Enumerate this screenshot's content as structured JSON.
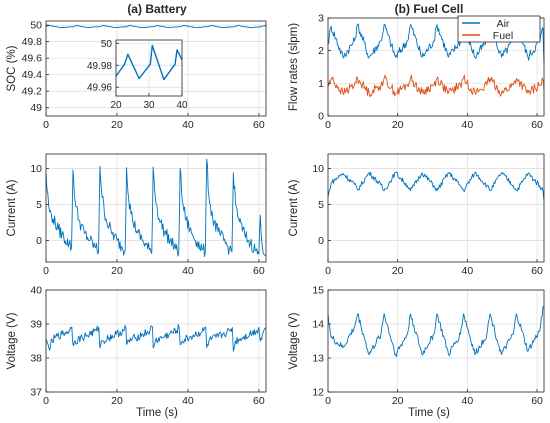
{
  "titles": {
    "battery": "(a) Battery",
    "fuel_cell": "(b) Fuel Cell"
  },
  "xlabel": "Time (s)",
  "legend": {
    "air": "Air",
    "fuel": "Fuel"
  },
  "colors": {
    "air": "#0072BD",
    "fuel": "#D95319",
    "grid": "#dcdcdc",
    "axes": "#262626"
  },
  "chart_data": [
    {
      "id": "battery-soc",
      "type": "line",
      "ylabel": "SOC (%)",
      "xlim": [
        0,
        62
      ],
      "ylim": [
        48.9,
        50.05
      ],
      "xticks": [
        0,
        20,
        40,
        60
      ],
      "yticks": [
        49,
        49.2,
        49.4,
        49.6,
        49.8,
        50
      ],
      "ytick_labels": [
        "49",
        "49.2",
        "49.4",
        "49.6",
        "49.8",
        "50"
      ],
      "grid": true,
      "series": [
        {
          "color": "#0072BD",
          "x": [
            0,
            0.9,
            4.3,
            7.6,
            8.5,
            11.8,
            15.2,
            16.1,
            19.4,
            22.8,
            23.7,
            27.0,
            30.4,
            31.3,
            34.6,
            38.0,
            38.9,
            42.2,
            45.6,
            46.5,
            49.8,
            53.2,
            54.1,
            57.4,
            60.8,
            61.7,
            62
          ],
          "y": [
            49.985,
            49.996,
            49.97,
            49.982,
            49.996,
            49.97,
            49.982,
            49.996,
            49.97,
            49.982,
            49.996,
            49.97,
            49.982,
            49.996,
            49.97,
            49.982,
            49.996,
            49.97,
            49.982,
            49.996,
            49.97,
            49.982,
            49.996,
            49.97,
            49.982,
            49.996,
            49.99
          ]
        }
      ],
      "inset": {
        "xlim": [
          20,
          40
        ],
        "ylim": [
          49.952,
          50.003
        ],
        "xticks": [
          20,
          30,
          40
        ],
        "yticks": [
          49.96,
          49.98,
          50
        ],
        "ytick_labels": [
          "49.96",
          "49.98",
          "50"
        ],
        "series": [
          {
            "color": "#0072BD",
            "x": [
              20,
              22.6,
              23.6,
              27.0,
              30.4,
              31.0,
              34.5,
              37.9,
              38.5,
              40
            ],
            "y": [
              49.97,
              49.981,
              49.99,
              49.968,
              49.981,
              49.998,
              49.967,
              49.981,
              49.994,
              49.985
            ]
          }
        ]
      }
    },
    {
      "id": "fuel-cell-flow",
      "type": "line",
      "ylabel": "Flow rates (slpm)",
      "xlim": [
        0,
        62
      ],
      "ylim": [
        0,
        3
      ],
      "xticks": [
        0,
        20,
        40,
        60
      ],
      "yticks": [
        0,
        1,
        2,
        3
      ],
      "ytick_labels": [
        "0",
        "1",
        "2",
        "3"
      ],
      "grid": true,
      "series": [
        {
          "name": "Air",
          "color": "#0072BD",
          "x": [
            0,
            0.9,
            4.3,
            7.6,
            8.5,
            11.8,
            15.2,
            16.1,
            19.4,
            22.8,
            23.7,
            27.0,
            30.4,
            31.3,
            34.6,
            38.0,
            38.9,
            42.2,
            45.6,
            46.5,
            49.8,
            53.2,
            54.1,
            57.4,
            60.8,
            61.7,
            62
          ],
          "y": [
            2.2,
            2.75,
            1.8,
            2.3,
            2.8,
            1.8,
            2.3,
            2.8,
            1.8,
            2.3,
            2.8,
            1.8,
            2.3,
            2.8,
            1.8,
            2.3,
            2.8,
            1.8,
            2.3,
            2.8,
            1.8,
            2.3,
            2.8,
            1.8,
            2.3,
            2.7,
            1.6
          ]
        },
        {
          "name": "Fuel",
          "color": "#D95319",
          "x": [
            0,
            0.9,
            4.3,
            7.6,
            8.5,
            11.8,
            15.2,
            16.1,
            19.4,
            22.8,
            23.7,
            27.0,
            30.4,
            31.3,
            34.6,
            38.0,
            38.9,
            42.2,
            45.6,
            46.5,
            49.8,
            53.2,
            54.1,
            57.4,
            60.8,
            61.7,
            62
          ],
          "y": [
            0.9,
            1.15,
            0.7,
            0.95,
            1.15,
            0.7,
            0.95,
            1.15,
            0.7,
            0.95,
            1.15,
            0.7,
            0.95,
            1.15,
            0.7,
            0.95,
            1.15,
            0.7,
            0.95,
            1.15,
            0.7,
            0.95,
            1.15,
            0.7,
            0.95,
            1.1,
            0.75
          ]
        }
      ]
    },
    {
      "id": "battery-current",
      "type": "line",
      "ylabel": "Current (A)",
      "xlim": [
        0,
        62
      ],
      "ylim": [
        -3,
        12
      ],
      "xticks": [
        0,
        20,
        40,
        60
      ],
      "yticks": [
        0,
        5,
        10
      ],
      "ytick_labels": [
        "0",
        "5",
        "10"
      ],
      "grid": true,
      "series": [
        {
          "color": "#0072BD",
          "x": [
            0,
            0.3,
            1.0,
            2.0,
            3.5,
            5.0,
            6.5,
            7.2,
            7.6,
            8.2,
            9.3,
            10.8,
            12.4,
            14.0,
            14.8,
            15.2,
            15.8,
            16.9,
            18.4,
            20.0,
            21.5,
            22.3,
            22.7,
            23.3,
            24.4,
            25.9,
            27.5,
            29.1,
            29.8,
            30.2,
            30.8,
            31.9,
            33.4,
            35.0,
            36.6,
            37.4,
            37.8,
            38.4,
            39.5,
            41.0,
            42.6,
            44.2,
            44.9,
            45.3,
            45.9,
            47.0,
            48.5,
            50.1,
            51.7,
            52.4,
            52.8,
            53.4,
            54.5,
            56.0,
            57.6,
            59.2,
            60.0,
            60.4,
            61.0,
            62
          ],
          "y": [
            9.5,
            7.0,
            4.0,
            3.0,
            1.5,
            0.5,
            -0.5,
            -1.0,
            9.8,
            5.5,
            2.8,
            1.0,
            0.0,
            -1.0,
            -1.5,
            10.3,
            6.0,
            3.0,
            1.2,
            0.0,
            -1.0,
            -1.5,
            10.1,
            5.8,
            2.8,
            1.0,
            -0.2,
            -1.3,
            -1.8,
            10.2,
            6.0,
            3.0,
            1.2,
            0.0,
            -1.2,
            -1.7,
            10.0,
            5.5,
            2.8,
            1.0,
            -0.2,
            -1.3,
            -1.6,
            11.3,
            6.2,
            3.0,
            1.2,
            0.0,
            -1.2,
            -1.6,
            9.4,
            5.2,
            2.6,
            0.8,
            -0.4,
            -1.4,
            -1.9,
            3.5,
            -1.0,
            -2.0
          ]
        }
      ]
    },
    {
      "id": "fuel-cell-current",
      "type": "line",
      "ylabel": "Current (A)",
      "xlim": [
        0,
        62
      ],
      "ylim": [
        -3,
        12
      ],
      "xticks": [
        0,
        20,
        40,
        60
      ],
      "yticks": [
        0,
        5,
        10
      ],
      "ytick_labels": [
        "0",
        "5",
        "10"
      ],
      "grid": true,
      "series": [
        {
          "color": "#0072BD",
          "x": [
            0,
            0.9,
            4.3,
            7.6,
            8.5,
            11.8,
            15.2,
            16.1,
            19.4,
            22.8,
            23.7,
            27.0,
            30.4,
            31.3,
            34.6,
            38.0,
            38.9,
            42.2,
            45.6,
            46.5,
            49.8,
            53.2,
            54.1,
            57.4,
            60.8,
            61.7,
            62
          ],
          "y": [
            6.0,
            8.0,
            9.3,
            7.8,
            7.0,
            9.4,
            7.7,
            6.9,
            9.4,
            7.6,
            6.9,
            9.4,
            7.6,
            6.9,
            9.4,
            7.6,
            6.9,
            9.4,
            7.6,
            6.9,
            9.4,
            7.6,
            6.9,
            9.3,
            7.6,
            6.9,
            5.5
          ]
        }
      ]
    },
    {
      "id": "battery-voltage",
      "type": "line",
      "ylabel": "Voltage (V)",
      "xlim": [
        0,
        62
      ],
      "ylim": [
        37,
        40
      ],
      "xticks": [
        0,
        20,
        40,
        60
      ],
      "yticks": [
        37,
        38,
        39,
        40
      ],
      "ytick_labels": [
        "37",
        "38",
        "39",
        "40"
      ],
      "grid": true,
      "series": [
        {
          "color": "#0072BD",
          "x": [
            0,
            0.8,
            2.5,
            4.5,
            6.5,
            7.3,
            7.6,
            8.2,
            10.2,
            12.2,
            14.2,
            14.9,
            15.2,
            15.8,
            17.8,
            19.8,
            21.8,
            22.5,
            22.7,
            23.3,
            25.3,
            27.3,
            29.3,
            30.0,
            30.2,
            30.8,
            32.8,
            34.8,
            36.8,
            37.5,
            37.8,
            38.4,
            40.4,
            42.4,
            44.4,
            45.0,
            45.3,
            45.9,
            47.9,
            49.9,
            51.9,
            52.5,
            52.8,
            53.4,
            55.4,
            57.4,
            59.4,
            60.0,
            60.4,
            61.0,
            62
          ],
          "y": [
            38.5,
            38.3,
            38.6,
            38.7,
            38.8,
            38.9,
            38.4,
            38.5,
            38.6,
            38.7,
            38.8,
            38.9,
            38.3,
            38.5,
            38.6,
            38.7,
            38.8,
            38.9,
            38.4,
            38.5,
            38.6,
            38.7,
            38.8,
            38.9,
            38.3,
            38.5,
            38.6,
            38.7,
            38.8,
            38.9,
            38.4,
            38.5,
            38.6,
            38.7,
            38.8,
            38.9,
            38.3,
            38.5,
            38.6,
            38.7,
            38.8,
            38.9,
            38.2,
            38.5,
            38.6,
            38.7,
            38.8,
            38.9,
            38.5,
            38.7,
            38.9
          ]
        }
      ]
    },
    {
      "id": "fuel-cell-voltage",
      "type": "line",
      "ylabel": "Voltage (V)",
      "xlim": [
        0,
        62
      ],
      "ylim": [
        12,
        15
      ],
      "xticks": [
        0,
        20,
        40,
        60
      ],
      "yticks": [
        12,
        13,
        14,
        15
      ],
      "ytick_labels": [
        "12",
        "13",
        "14",
        "15"
      ],
      "grid": true,
      "series": [
        {
          "color": "#0072BD",
          "x": [
            0,
            0.9,
            4.3,
            7.6,
            8.5,
            11.8,
            15.2,
            16.1,
            19.4,
            22.8,
            23.7,
            27.0,
            30.4,
            31.3,
            34.6,
            38.0,
            38.9,
            42.2,
            45.6,
            46.5,
            49.8,
            53.2,
            54.1,
            57.4,
            60.8,
            61.7,
            62
          ],
          "y": [
            14.3,
            13.6,
            13.3,
            13.9,
            14.3,
            13.1,
            13.7,
            14.3,
            13.1,
            13.7,
            14.3,
            13.1,
            13.7,
            14.3,
            13.1,
            13.7,
            14.3,
            13.1,
            13.7,
            14.3,
            13.1,
            13.7,
            14.3,
            13.2,
            13.8,
            14.5,
            14.5
          ]
        }
      ]
    }
  ]
}
